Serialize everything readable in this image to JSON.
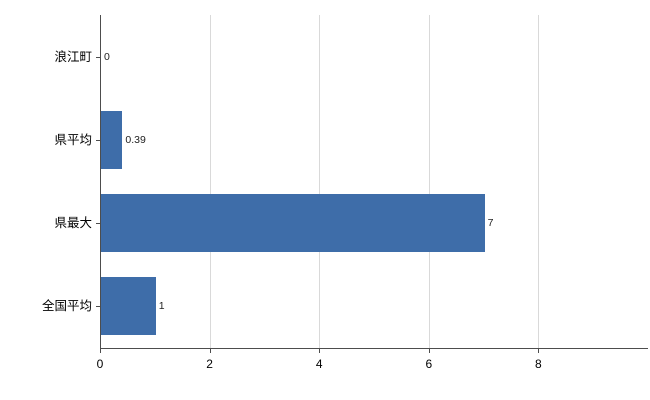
{
  "chart_data": {
    "type": "bar",
    "orientation": "horizontal",
    "title": "",
    "xlabel": "",
    "ylabel": "",
    "categories": [
      "浪江町",
      "県平均",
      "県最大",
      "全国平均"
    ],
    "values": [
      0,
      0.39,
      7,
      1
    ],
    "value_labels": [
      "0",
      "0.39",
      "7",
      "1"
    ],
    "xlim": [
      0,
      10
    ],
    "xticks": [
      0,
      2,
      4,
      6,
      8
    ],
    "xtick_labels": [
      "0",
      "2",
      "4",
      "6",
      "8"
    ],
    "grid": true,
    "legend": "none",
    "bar_color": "#3e6da9",
    "grid_color": "#d9d9d9",
    "axis_color": "#4d4d4d",
    "background_color": "#ffffff"
  }
}
